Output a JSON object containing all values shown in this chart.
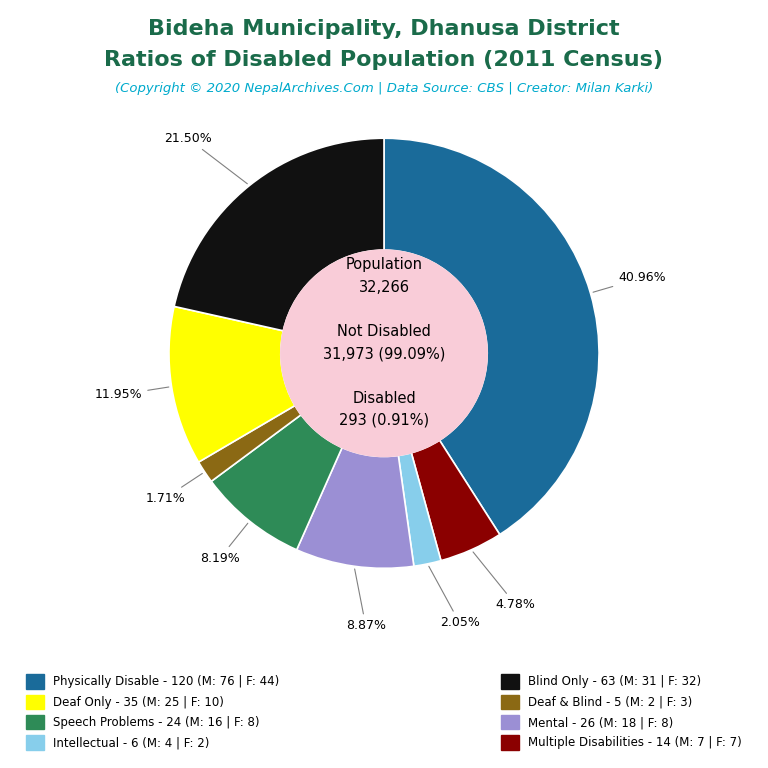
{
  "title_line1": "Bideha Municipality, Dhanusa District",
  "title_line2": "Ratios of Disabled Population (2011 Census)",
  "subtitle": "(Copyright © 2020 NepalArchives.Com | Data Source: CBS | Creator: Milan Karki)",
  "title_color": "#1a6b4a",
  "subtitle_color": "#00aacc",
  "center_circle_color": "#f9ccd8",
  "center_lines": [
    "Population",
    "32,266",
    "",
    "Not Disabled",
    "31,973 (99.09%)",
    "",
    "Disabled",
    "293 (0.91%)"
  ],
  "slices": [
    {
      "label": "Physically Disable - 120 (M: 76 | F: 44)",
      "value": 120,
      "pct": "40.96%",
      "color": "#1a6b9a"
    },
    {
      "label": "Multiple Disabilities - 14 (M: 7 | F: 7)",
      "value": 14,
      "pct": "4.78%",
      "color": "#8b0000"
    },
    {
      "label": "Intellectual - 6 (M: 4 | F: 2)",
      "value": 6,
      "pct": "2.05%",
      "color": "#87ceeb"
    },
    {
      "label": "Mental - 26 (M: 18 | F: 8)",
      "value": 26,
      "pct": "8.87%",
      "color": "#9b8fd4"
    },
    {
      "label": "Speech Problems - 24 (M: 16 | F: 8)",
      "value": 24,
      "pct": "8.19%",
      "color": "#2e8b57"
    },
    {
      "label": "Deaf & Blind - 5 (M: 2 | F: 3)",
      "value": 5,
      "pct": "1.71%",
      "color": "#8b6914"
    },
    {
      "label": "Deaf Only - 35 (M: 25 | F: 10)",
      "value": 35,
      "pct": "11.95%",
      "color": "#ffff00"
    },
    {
      "label": "Blind Only - 63 (M: 31 | F: 32)",
      "value": 63,
      "pct": "21.50%",
      "color": "#111111"
    }
  ],
  "legend_left": [
    {
      "label": "Physically Disable - 120 (M: 76 | F: 44)",
      "color": "#1a6b9a"
    },
    {
      "label": "Deaf Only - 35 (M: 25 | F: 10)",
      "color": "#ffff00"
    },
    {
      "label": "Speech Problems - 24 (M: 16 | F: 8)",
      "color": "#2e8b57"
    },
    {
      "label": "Intellectual - 6 (M: 4 | F: 2)",
      "color": "#87ceeb"
    }
  ],
  "legend_right": [
    {
      "label": "Blind Only - 63 (M: 31 | F: 32)",
      "color": "#111111"
    },
    {
      "label": "Deaf & Blind - 5 (M: 2 | F: 3)",
      "color": "#8b6914"
    },
    {
      "label": "Mental - 26 (M: 18 | F: 8)",
      "color": "#9b8fd4"
    },
    {
      "label": "Multiple Disabilities - 14 (M: 7 | F: 7)",
      "color": "#8b0000"
    }
  ],
  "background_color": "#ffffff"
}
